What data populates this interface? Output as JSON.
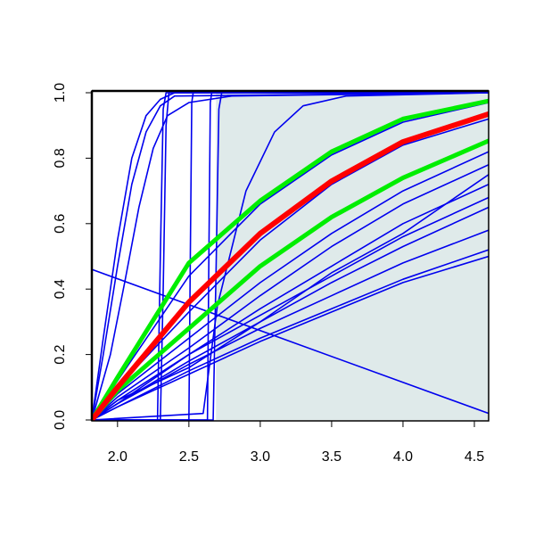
{
  "chart_data": {
    "type": "line",
    "xlim": [
      1.82,
      4.6
    ],
    "ylim": [
      0,
      1
    ],
    "xticks": [
      {
        "value": 2,
        "label": "2.0"
      },
      2.5,
      {
        "value": 3,
        "label": "3.0"
      },
      3.5,
      {
        "value": 4,
        "label": "4.0"
      },
      4.5
    ],
    "yticks": [
      {
        "value": 0,
        "label": "0.0"
      },
      0.2,
      0.4,
      0.6,
      0.8,
      {
        "value": 1,
        "label": "1.0"
      }
    ],
    "shaded_region": {
      "x": [
        2.69,
        4.6
      ],
      "color": "#dfeaea"
    },
    "series": [
      {
        "color": "#0000ee",
        "width": 1.6,
        "x": [
          1.82,
          4.6
        ],
        "values": [
          0.46,
          0.02
        ]
      },
      {
        "color": "#0000ee",
        "width": 1.6,
        "x": [
          1.82,
          1.9,
          2.0,
          2.1,
          2.2,
          2.3,
          2.4,
          4.6
        ],
        "values": [
          0,
          0.25,
          0.55,
          0.8,
          0.93,
          0.98,
          1,
          1
        ]
      },
      {
        "color": "#0000ee",
        "width": 1.6,
        "x": [
          1.82,
          1.9,
          2.0,
          2.1,
          2.2,
          2.3,
          2.4,
          4.6
        ],
        "values": [
          0,
          0.2,
          0.47,
          0.72,
          0.88,
          0.96,
          0.99,
          1
        ]
      },
      {
        "color": "#0000ee",
        "width": 1.6,
        "x": [
          1.82,
          1.95,
          2.05,
          2.15,
          2.25,
          2.35,
          2.5,
          2.8,
          4.6
        ],
        "values": [
          0,
          0.2,
          0.42,
          0.65,
          0.83,
          0.93,
          0.97,
          0.99,
          1
        ]
      },
      {
        "color": "#0000ee",
        "width": 1.6,
        "x": [
          1.82,
          2.28,
          2.3,
          2.32,
          2.34,
          4.6
        ],
        "values": [
          0,
          0,
          0.5,
          0.95,
          1,
          1
        ]
      },
      {
        "color": "#0000ee",
        "width": 1.6,
        "x": [
          1.82,
          2.3,
          2.32,
          2.34,
          2.36,
          4.6
        ],
        "values": [
          0,
          0,
          0.4,
          0.9,
          1,
          1
        ]
      },
      {
        "color": "#0000ee",
        "width": 1.6,
        "x": [
          1.82,
          2.5,
          2.51,
          2.52,
          2.53,
          4.6
        ],
        "values": [
          0,
          0,
          0.5,
          0.97,
          1,
          1
        ]
      },
      {
        "color": "#0000ee",
        "width": 1.6,
        "x": [
          1.82,
          2.63,
          2.64,
          2.65,
          2.66,
          4.6
        ],
        "values": [
          0,
          0,
          0.5,
          0.97,
          1,
          1
        ]
      },
      {
        "color": "#0000ee",
        "width": 1.6,
        "x": [
          1.82,
          2.67,
          2.69,
          2.71,
          2.73,
          4.6
        ],
        "values": [
          0,
          0,
          0.45,
          0.95,
          1,
          1
        ]
      },
      {
        "color": "#0000ee",
        "width": 1.6,
        "x": [
          1.82,
          2.6,
          2.7,
          2.9,
          3.1,
          3.3,
          3.6,
          4.6
        ],
        "values": [
          0,
          0.02,
          0.35,
          0.7,
          0.88,
          0.96,
          0.99,
          1
        ]
      },
      {
        "color": "#0000ee",
        "width": 1.6,
        "x": [
          1.82,
          2.0,
          2.5,
          3.0,
          3.5,
          4.0,
          4.6
        ],
        "values": [
          0,
          0.06,
          0.2,
          0.34,
          0.47,
          0.6,
          0.72
        ]
      },
      {
        "color": "#0000ee",
        "width": 1.6,
        "x": [
          1.82,
          2.0,
          2.5,
          3.0,
          3.5,
          4.0,
          4.6
        ],
        "values": [
          0,
          0.05,
          0.18,
          0.3,
          0.42,
          0.53,
          0.65
        ]
      },
      {
        "color": "#0000ee",
        "width": 1.6,
        "x": [
          1.82,
          2.0,
          2.5,
          3.0,
          3.5,
          4.0,
          4.6
        ],
        "values": [
          0,
          0.05,
          0.17,
          0.28,
          0.38,
          0.48,
          0.58
        ]
      },
      {
        "color": "#0000ee",
        "width": 1.6,
        "x": [
          1.82,
          2.0,
          2.5,
          3.0,
          3.5,
          4.0,
          4.6
        ],
        "values": [
          0,
          0.04,
          0.15,
          0.25,
          0.34,
          0.43,
          0.52
        ]
      },
      {
        "color": "#0000ee",
        "width": 1.6,
        "x": [
          1.82,
          2.0,
          2.5,
          3.0,
          3.5,
          4.0,
          4.6
        ],
        "values": [
          0,
          0.04,
          0.14,
          0.24,
          0.33,
          0.42,
          0.5
        ]
      },
      {
        "color": "#0000ee",
        "width": 1.6,
        "x": [
          1.82,
          2.0,
          2.5,
          3.0,
          3.5,
          4.0,
          4.6
        ],
        "values": [
          0,
          0.07,
          0.22,
          0.38,
          0.53,
          0.66,
          0.78
        ]
      },
      {
        "color": "#0000ee",
        "width": 1.6,
        "x": [
          1.82,
          2.0,
          2.5,
          3.0,
          3.5,
          4.0,
          4.6
        ],
        "values": [
          0,
          0.08,
          0.25,
          0.42,
          0.57,
          0.7,
          0.82
        ]
      },
      {
        "color": "#0000ee",
        "width": 1.6,
        "x": [
          1.82,
          2.0,
          2.5,
          3.0,
          3.5,
          4.0,
          4.6
        ],
        "values": [
          0,
          0.05,
          0.2,
          0.32,
          0.44,
          0.56,
          0.68
        ]
      },
      {
        "color": "#0000ee",
        "width": 1.6,
        "x": [
          1.82,
          2.0,
          2.5,
          3.0,
          3.5,
          4.0,
          4.6
        ],
        "values": [
          0,
          0.06,
          0.16,
          0.3,
          0.45,
          0.57,
          0.75
        ]
      },
      {
        "color": "#0000ee",
        "width": 1.6,
        "x": [
          1.82,
          2.0,
          2.5,
          3.0,
          3.5,
          4.0,
          4.6
        ],
        "values": [
          0,
          0.1,
          0.33,
          0.55,
          0.72,
          0.84,
          0.92
        ]
      },
      {
        "color": "#0000ee",
        "width": 1.6,
        "x": [
          1.82,
          2.0,
          2.5,
          3.0,
          3.5,
          4.0,
          4.6
        ],
        "values": [
          0,
          0.12,
          0.44,
          0.66,
          0.81,
          0.91,
          0.97
        ]
      },
      {
        "color": "#00ee00",
        "width": 5,
        "x": [
          1.82,
          2.0,
          2.5,
          3.0,
          3.5,
          4.0,
          4.6
        ],
        "values": [
          0,
          0.13,
          0.48,
          0.67,
          0.82,
          0.92,
          0.975
        ]
      },
      {
        "color": "#00ee00",
        "width": 5,
        "x": [
          1.82,
          2.0,
          2.5,
          3.0,
          3.5,
          4.0,
          4.6
        ],
        "values": [
          0,
          0.09,
          0.28,
          0.47,
          0.62,
          0.74,
          0.853
        ]
      },
      {
        "color": "#ff0000",
        "width": 6,
        "x": [
          1.82,
          2.0,
          2.5,
          3.0,
          3.5,
          4.0,
          4.6
        ],
        "values": [
          0,
          0.1,
          0.36,
          0.57,
          0.73,
          0.85,
          0.935
        ]
      }
    ]
  }
}
